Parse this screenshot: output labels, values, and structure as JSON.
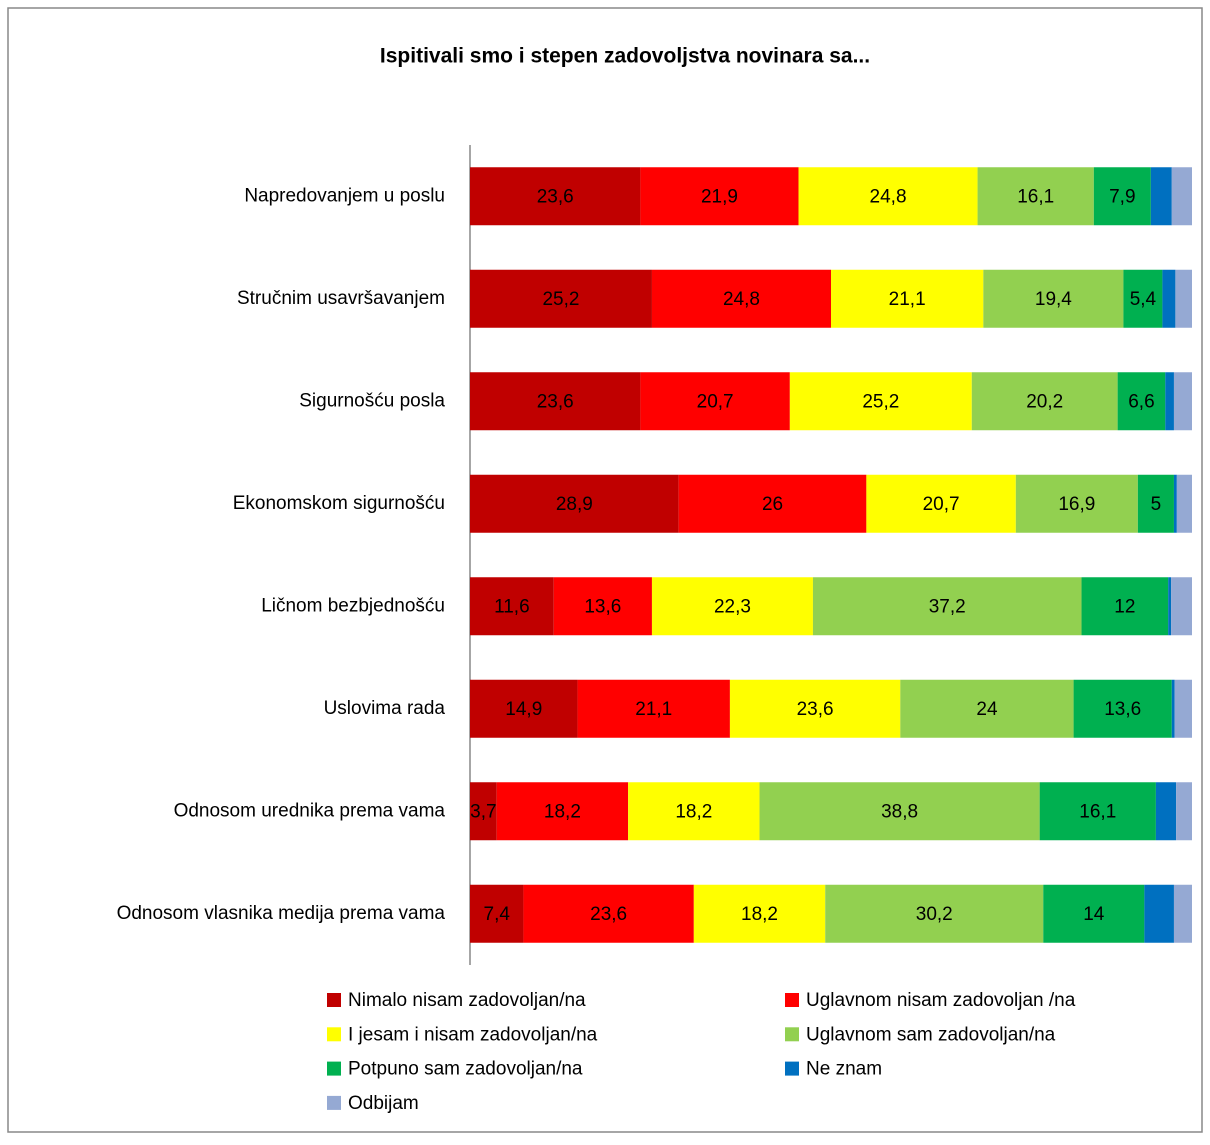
{
  "chart_data": {
    "type": "stacked-bar-horizontal",
    "title": "Ispitivali smo i stepen zadovoljstva novinara sa...",
    "categories": [
      "Napredovanjem u poslu",
      "Stručnim usavršavanjem",
      "Sigurnošću posla",
      "Ekonomskom sigurnošću",
      "Ličnom bezbjednošću",
      "Uslovima rada",
      "Odnosom urednika prema vama",
      "Odnosom vlasnika medija prema vama"
    ],
    "xlim": [
      0,
      100
    ],
    "series": [
      {
        "name": "Nimalo nisam zadovoljan/na",
        "color": "#c00000",
        "values": [
          23.6,
          25.2,
          23.6,
          28.9,
          11.6,
          14.9,
          3.7,
          7.4
        ],
        "value_labels": [
          "23,6",
          "25,2",
          "23,6",
          "28,9",
          "11,6",
          "14,9",
          "3,7",
          "7,4"
        ]
      },
      {
        "name": "Uglavnom nisam zadovoljan /na",
        "color": "#ff0000",
        "values": [
          21.9,
          24.8,
          20.7,
          26,
          13.6,
          21.1,
          18.2,
          23.6
        ],
        "value_labels": [
          "21,9",
          "24,8",
          "20,7",
          "26",
          "13,6",
          "21,1",
          "18,2",
          "23,6"
        ]
      },
      {
        "name": "I jesam i nisam zadovoljan/na",
        "color": "#ffff00",
        "values": [
          24.8,
          21.1,
          25.2,
          20.7,
          22.3,
          23.6,
          18.2,
          18.2
        ],
        "value_labels": [
          "24,8",
          "21,1",
          "25,2",
          "20,7",
          "22,3",
          "23,6",
          "18,2",
          "18,2"
        ]
      },
      {
        "name": "Uglavnom sam zadovoljan/na",
        "color": "#92d050",
        "values": [
          16.1,
          19.4,
          20.2,
          16.9,
          37.2,
          24,
          38.8,
          30.2
        ],
        "value_labels": [
          "16,1",
          "19,4",
          "20,2",
          "16,9",
          "37,2",
          "24",
          "38,8",
          "30,2"
        ]
      },
      {
        "name": "Potpuno sam zadovoljan/na",
        "color": "#00b050",
        "values": [
          7.9,
          5.4,
          6.6,
          5,
          12,
          13.6,
          16.1,
          14
        ],
        "value_labels": [
          "7,9",
          "5,4",
          "6,6",
          "5",
          "12",
          "13,6",
          "16,1",
          "14"
        ]
      },
      {
        "name": "Ne znam",
        "color": "#0070c0",
        "values": [
          2.9,
          1.8,
          1.2,
          0.4,
          0.4,
          0.4,
          2.8,
          4.1
        ]
      },
      {
        "name": "Odbijam",
        "color": "#95a9d3",
        "values": [
          2.8,
          2.3,
          2.5,
          2.1,
          2.9,
          2.4,
          2.2,
          2.5
        ]
      }
    ]
  }
}
